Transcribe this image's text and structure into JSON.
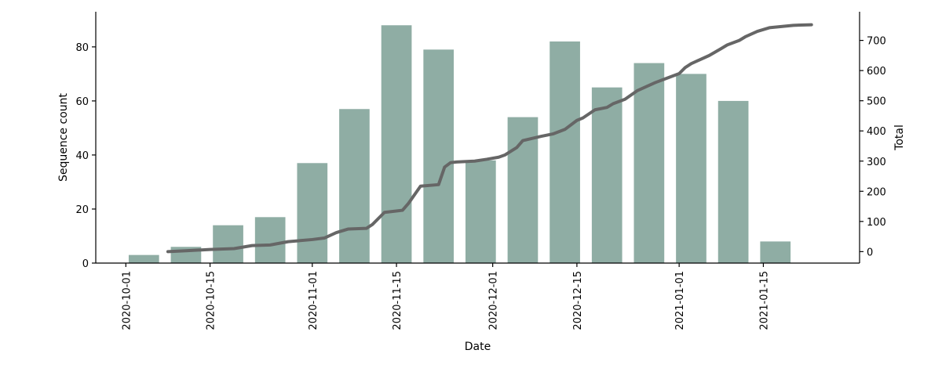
{
  "chart_data": {
    "type": "bar",
    "title": "",
    "xlabel": "Date",
    "ylabel": "Sequence count",
    "y2label": "Total",
    "xlim": [
      "2020-09-26",
      "2021-01-31"
    ],
    "ylim": [
      0,
      93
    ],
    "y2lim": [
      -38,
      795
    ],
    "x_ticks": [
      "2020-10-01",
      "2020-10-15",
      "2020-11-01",
      "2020-11-15",
      "2020-12-01",
      "2020-12-15",
      "2021-01-01",
      "2021-01-15"
    ],
    "y_ticks": [
      0,
      20,
      40,
      60,
      80
    ],
    "y2_ticks": [
      0,
      100,
      200,
      300,
      400,
      500,
      600,
      700
    ],
    "grid": false,
    "colors": {
      "bars": "#8fada4",
      "line": "#666666"
    },
    "bars": {
      "x": [
        "2020-10-04",
        "2020-10-11",
        "2020-10-18",
        "2020-10-25",
        "2020-11-01",
        "2020-11-08",
        "2020-11-15",
        "2020-11-22",
        "2020-11-29",
        "2020-12-06",
        "2020-12-13",
        "2020-12-20",
        "2020-12-27",
        "2021-01-03",
        "2021-01-10",
        "2021-01-17"
      ],
      "values": [
        3,
        6,
        14,
        17,
        37,
        57,
        88,
        79,
        38,
        54,
        82,
        65,
        74,
        70,
        60,
        8
      ]
    },
    "series": [
      {
        "type": "line",
        "axis": "right",
        "x": [
          "2020-10-08",
          "2020-10-11",
          "2020-10-15",
          "2020-10-19",
          "2020-10-22",
          "2020-10-25",
          "2020-10-28",
          "2020-11-01",
          "2020-11-03",
          "2020-11-05",
          "2020-11-07",
          "2020-11-10",
          "2020-11-11",
          "2020-11-13",
          "2020-11-16",
          "2020-11-17",
          "2020-11-19",
          "2020-11-22",
          "2020-11-23",
          "2020-11-24",
          "2020-11-25",
          "2020-11-28",
          "2020-11-30",
          "2020-12-02",
          "2020-12-03",
          "2020-12-05",
          "2020-12-06",
          "2020-12-09",
          "2020-12-11",
          "2020-12-13",
          "2020-12-15",
          "2020-12-16",
          "2020-12-18",
          "2020-12-20",
          "2020-12-21",
          "2020-12-23",
          "2020-12-25",
          "2020-12-28",
          "2020-12-30",
          "2021-01-01",
          "2021-01-02",
          "2021-01-03",
          "2021-01-06",
          "2021-01-08",
          "2021-01-09",
          "2021-01-11",
          "2021-01-12",
          "2021-01-14",
          "2021-01-16",
          "2021-01-20",
          "2021-01-23"
        ],
        "values": [
          0,
          3,
          7,
          10,
          20,
          22,
          33,
          40,
          45,
          63,
          75,
          77,
          90,
          130,
          137,
          160,
          217,
          222,
          280,
          295,
          297,
          300,
          306,
          313,
          320,
          345,
          368,
          382,
          390,
          405,
          435,
          443,
          470,
          478,
          490,
          505,
          533,
          560,
          575,
          590,
          610,
          623,
          650,
          673,
          685,
          700,
          712,
          730,
          742,
          750,
          752
        ]
      }
    ]
  }
}
